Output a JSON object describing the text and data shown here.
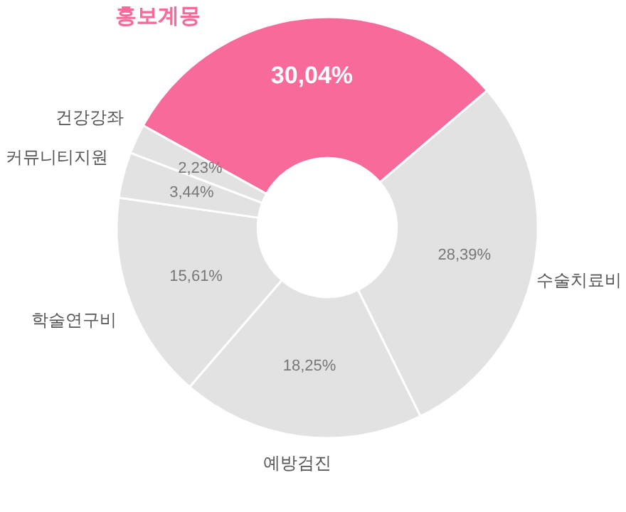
{
  "chart_data": {
    "type": "donut",
    "categories": [
      "홍보계몽",
      "수술치료비",
      "예방검진",
      "학술연구비",
      "커뮤니티지원",
      "건강강좌"
    ],
    "values": [
      30.04,
      28.39,
      18.25,
      15.61,
      3.44,
      2.23
    ],
    "colors": [
      "#f76a9a",
      "#e2e2e2",
      "#e2e2e2",
      "#e2e2e2",
      "#e2e2e2",
      "#e2e2e2"
    ],
    "value_labels": [
      "30,04%",
      "28,39%",
      "18,25%",
      "15,61%",
      "3,44%",
      "2,23%"
    ]
  }
}
